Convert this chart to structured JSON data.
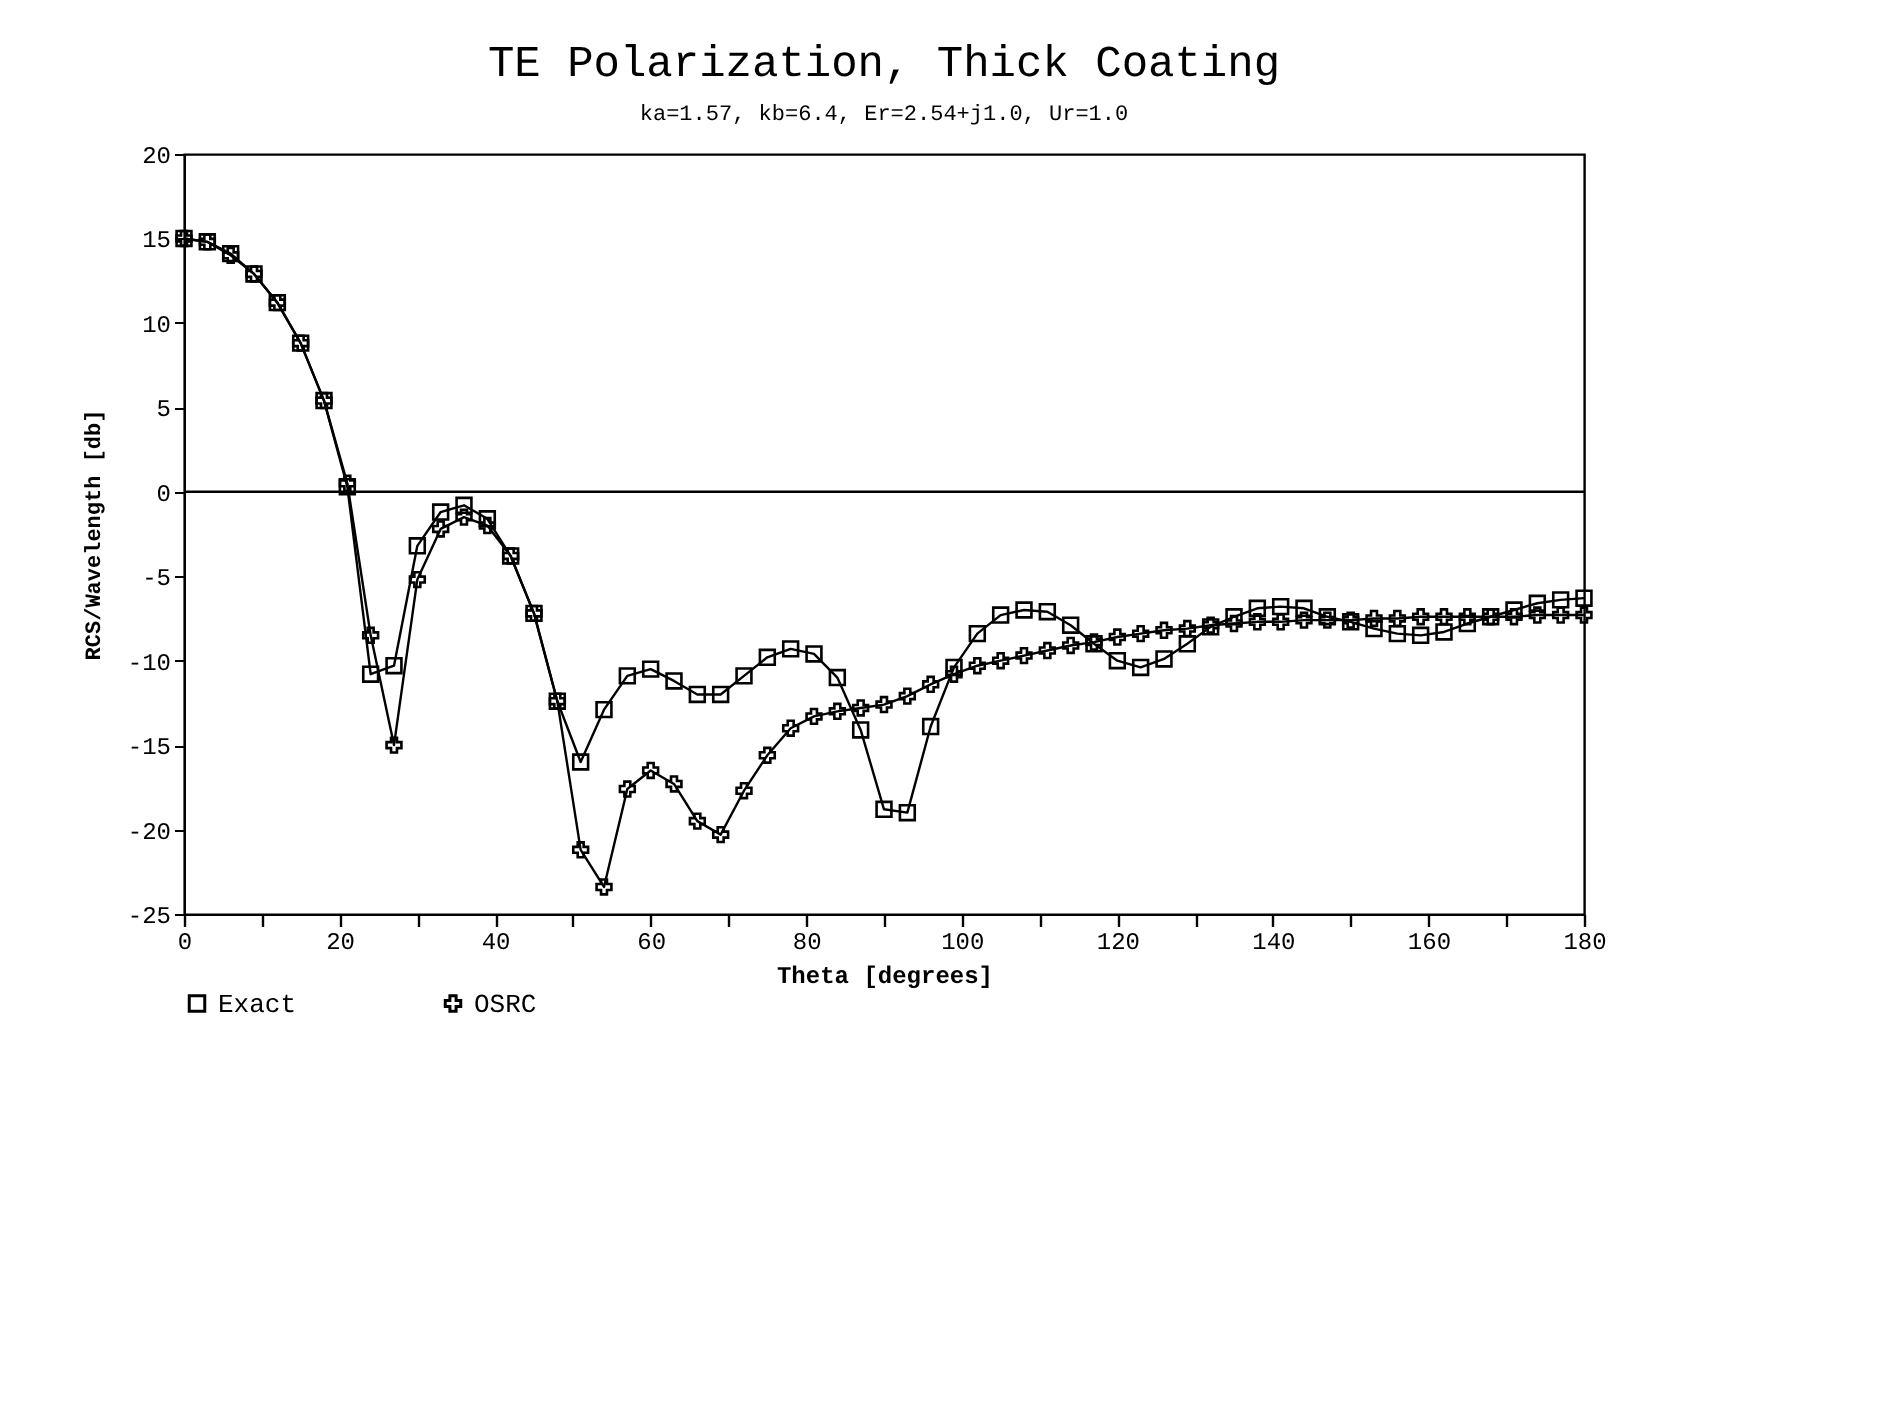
{
  "chart_data": {
    "type": "line",
    "title": "TE Polarization, Thick Coating",
    "subtitle": "ka=1.57, kb=6.4, Er=2.54+j1.0, Ur=1.0",
    "xlabel": "Theta [degrees]",
    "ylabel": "RCS/Wavelength [db]",
    "x": [
      0,
      3,
      6,
      9,
      12,
      15,
      18,
      21,
      24,
      27,
      30,
      33,
      36,
      39,
      42,
      45,
      48,
      51,
      54,
      57,
      60,
      63,
      66,
      69,
      72,
      75,
      78,
      81,
      84,
      87,
      90,
      93,
      96,
      99,
      102,
      105,
      108,
      111,
      114,
      117,
      120,
      123,
      126,
      129,
      132,
      135,
      138,
      141,
      144,
      147,
      150,
      153,
      156,
      159,
      162,
      165,
      168,
      171,
      174,
      177,
      180
    ],
    "series": [
      {
        "name": "Exact",
        "color": "#000000",
        "marker": "square",
        "values": [
          15,
          14.8,
          14.1,
          12.9,
          11.2,
          8.8,
          5.4,
          0.3,
          -10.8,
          -10.3,
          -3.2,
          -1.2,
          -0.8,
          -1.6,
          -3.8,
          -7.2,
          -12.4,
          -16,
          -12.9,
          -10.9,
          -10.5,
          -11.2,
          -12,
          -12,
          -10.9,
          -9.8,
          -9.3,
          -9.6,
          -11,
          -14.1,
          -18.8,
          -19,
          -13.9,
          -10.4,
          -8.4,
          -7.3,
          -7,
          -7.1,
          -7.9,
          -9,
          -10,
          -10.4,
          -9.9,
          -9,
          -8,
          -7.4,
          -6.9,
          -6.8,
          -6.9,
          -7.4,
          -7.7,
          -8.1,
          -8.4,
          -8.5,
          -8.3,
          -7.8,
          -7.4,
          -7,
          -6.6,
          -6.4,
          -6.3
        ]
      },
      {
        "name": "OSRC",
        "color": "#000000",
        "marker": "cross",
        "values": [
          15,
          14.8,
          14,
          12.9,
          11.2,
          8.8,
          5.4,
          0.5,
          -8.5,
          -15,
          -5.2,
          -2.2,
          -1.5,
          -2,
          -3.8,
          -7.2,
          -12.4,
          -21.2,
          -23.4,
          -17.6,
          -16.5,
          -17.3,
          -19.5,
          -20.3,
          -17.7,
          -15.6,
          -14,
          -13.3,
          -13,
          -12.8,
          -12.6,
          -12.1,
          -11.4,
          -10.8,
          -10.3,
          -10,
          -9.7,
          -9.4,
          -9.1,
          -8.9,
          -8.6,
          -8.4,
          -8.2,
          -8.1,
          -7.9,
          -7.8,
          -7.7,
          -7.7,
          -7.6,
          -7.6,
          -7.6,
          -7.5,
          -7.5,
          -7.4,
          -7.4,
          -7.4,
          -7.4,
          -7.4,
          -7.3,
          -7.3,
          -7.3
        ]
      }
    ],
    "xlim": [
      0,
      180
    ],
    "xticks": [
      0,
      {
        "value": 10,
        "label": null
      },
      20,
      {
        "value": 30,
        "label": null
      },
      40,
      {
        "value": 50,
        "label": null
      },
      60,
      {
        "value": 70,
        "label": null
      },
      80,
      {
        "value": 90,
        "label": null
      },
      100,
      {
        "value": 110,
        "label": null
      },
      120,
      {
        "value": 130,
        "label": null
      },
      140,
      {
        "value": 150,
        "label": null
      },
      160,
      {
        "value": 170,
        "label": null
      },
      180
    ],
    "ylim": [
      -25,
      20
    ],
    "yticks": [
      -25,
      -20,
      -15,
      -10,
      -5,
      0,
      5,
      10,
      15,
      20
    ],
    "ref_lines": [
      {
        "axis": "y",
        "value": 0,
        "color": "#000000"
      }
    ],
    "grid": false,
    "legend": "bottom",
    "line_style": "solid"
  }
}
